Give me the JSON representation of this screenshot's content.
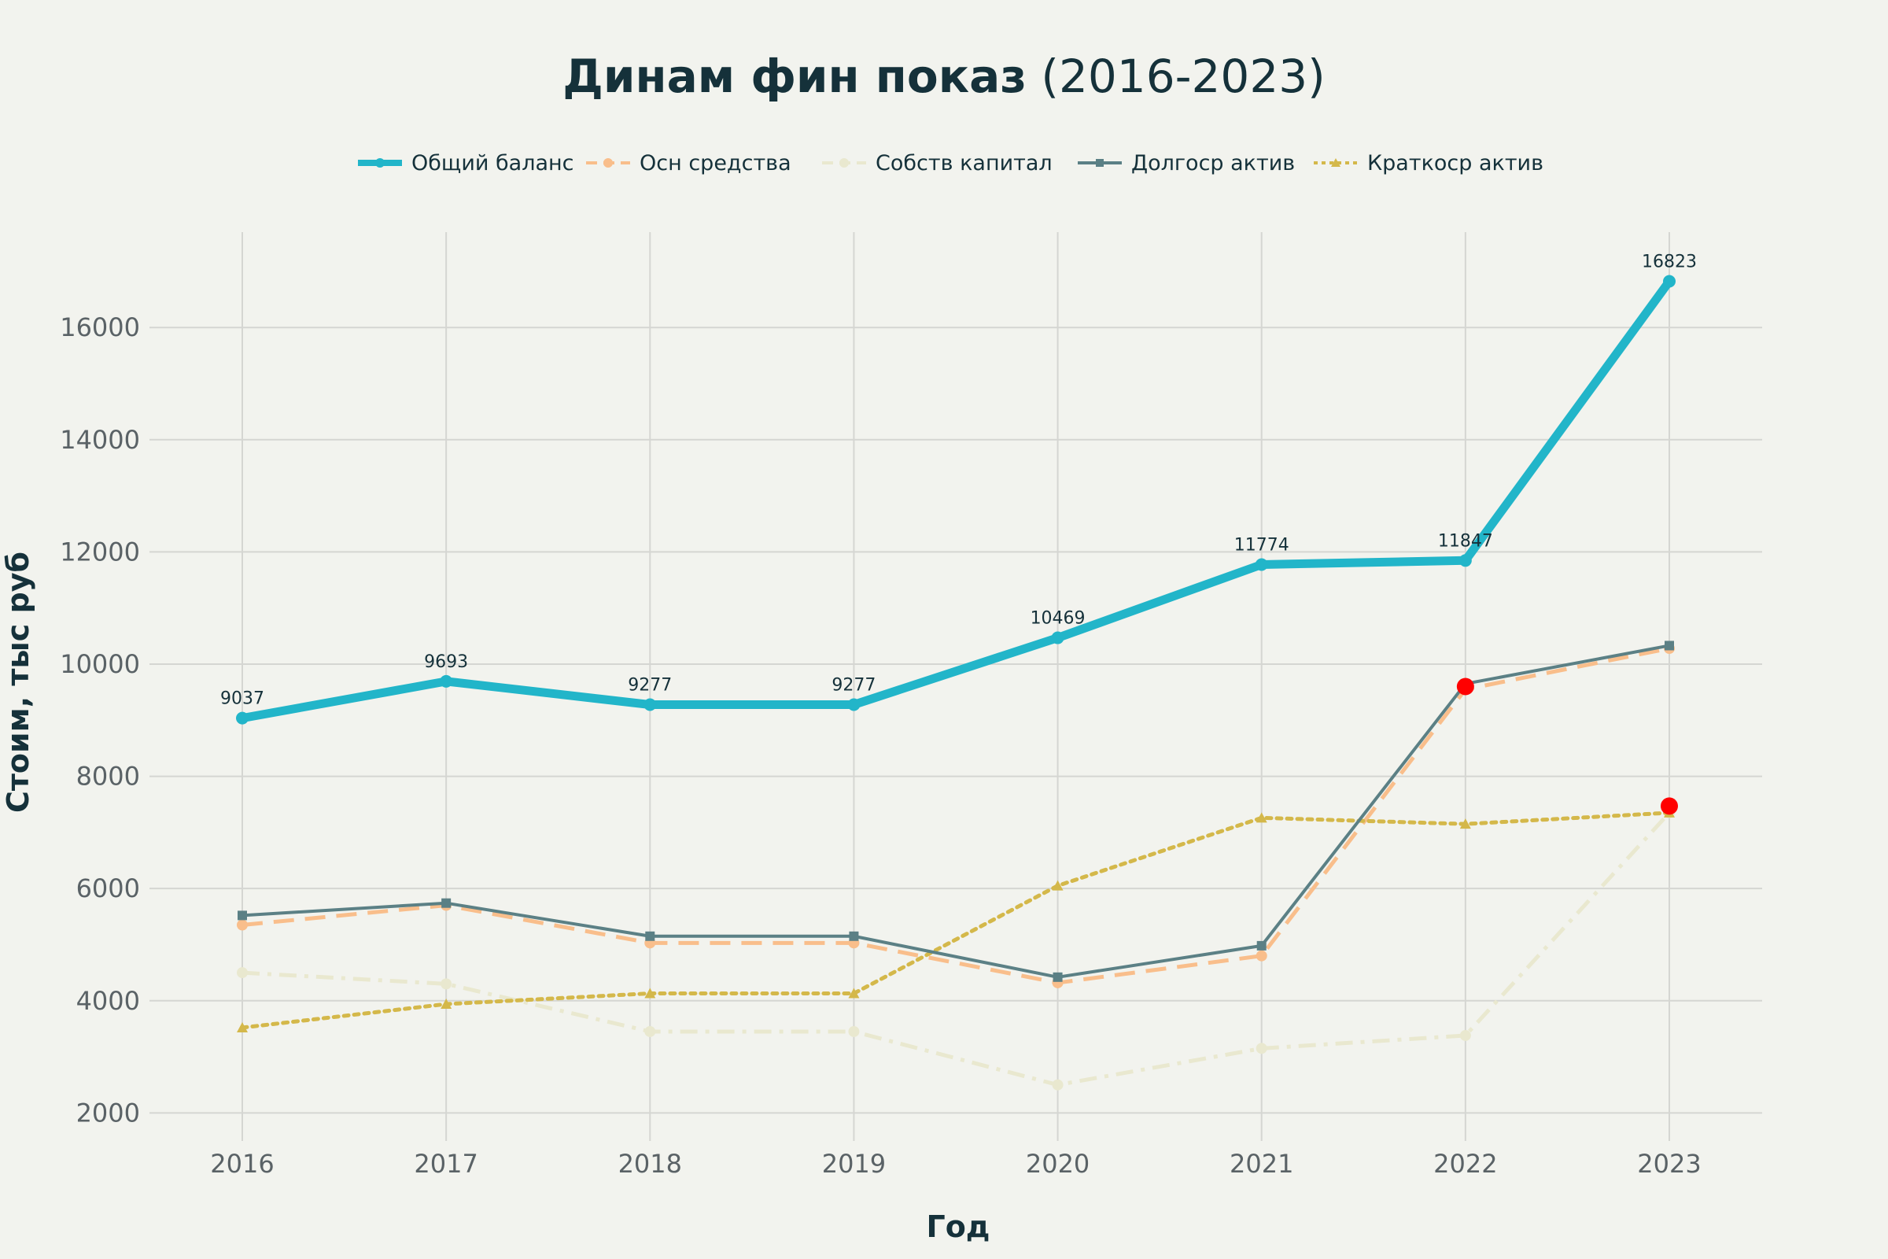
{
  "chart_data": {
    "type": "line",
    "title_main": "Динам фин показ",
    "title_suffix": " (2016-2023)",
    "xlabel": "Год",
    "ylabel": "Стоим, тыс руб",
    "x": [
      "2016",
      "2017",
      "2018",
      "2019",
      "2020",
      "2021",
      "2022",
      "2023"
    ],
    "ylim": [
      1500,
      17700
    ],
    "yticks": [
      2000,
      4000,
      6000,
      8000,
      10000,
      12000,
      14000,
      16000
    ],
    "grid": true,
    "legend_position": "top-center",
    "series": [
      {
        "name": "Общий баланс",
        "values": [
          9037,
          9693,
          9277,
          9277,
          10469,
          11774,
          11847,
          16823
        ],
        "color": "#22b5c9",
        "style": "solid-thick",
        "marker": "circle",
        "data_labels": true
      },
      {
        "name": "Осн средства",
        "values": [
          5350,
          5700,
          5030,
          5030,
          4320,
          4800,
          9550,
          10280
        ],
        "color": "#f9be8b",
        "style": "dashed",
        "marker": "circle"
      },
      {
        "name": "Собств капитал",
        "values": [
          4500,
          4300,
          3450,
          3450,
          2500,
          3150,
          3380,
          7350
        ],
        "color": "#e9e8cf",
        "style": "dashdot",
        "marker": "circle"
      },
      {
        "name": "Долгоср актив",
        "values": [
          5520,
          5740,
          5150,
          5150,
          4420,
          4980,
          9650,
          10330
        ],
        "color": "#5b8085",
        "style": "solid",
        "marker": "square"
      },
      {
        "name": "Краткоср актив",
        "values": [
          3520,
          3940,
          4130,
          4130,
          6050,
          7260,
          7150,
          7350
        ],
        "color": "#d4b84a",
        "style": "dotted",
        "marker": "triangle"
      }
    ],
    "highlights": [
      {
        "x": "2022",
        "y": 9600,
        "color": "#ff0000"
      },
      {
        "x": "2023",
        "y": 7470,
        "color": "#ff0000"
      }
    ],
    "colors": {
      "background": "#f2f3ee",
      "grid": "#d5d6d2",
      "text": "#15313a",
      "tick": "#5a6266"
    }
  }
}
